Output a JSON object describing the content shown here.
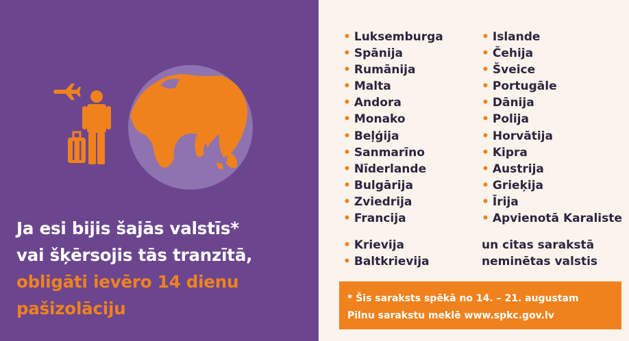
{
  "headline": {
    "line1": "Ja esi bijis šajās valstīs*",
    "line2": "vai šķērsojis tās tranzītā,",
    "line3": "obligāti ievēro 14 dienu",
    "line4": "pašizolāciju"
  },
  "countries_column_a": [
    "Luksemburga",
    "Spānija",
    "Rumānija",
    "Malta",
    "Andora",
    "Monako",
    "Beļģija",
    "Sanmarīno",
    "Nīderlande",
    "Bulgārija",
    "Zviedrija",
    "Francija"
  ],
  "countries_column_b": [
    "Islande",
    "Čehija",
    "Šveice",
    "Portugāle",
    "Dānija",
    "Polija",
    "Horvātija",
    "Kipra",
    "Austrija",
    "Grieķija",
    "Īrija",
    "Apvienotā Karaliste"
  ],
  "additional_countries": [
    "Krievija",
    "Baltkrievija"
  ],
  "additional_note": {
    "line1": "un citas sarakstā",
    "line2": "neminētas valstis"
  },
  "notice": {
    "line1": "* Šis saraksts spēkā no 14. – 21. augustam",
    "line2": "Pilnu sarakstu meklē www.spkc.gov.lv"
  },
  "bullet": "•",
  "icons": [
    "airplane-icon",
    "traveler-icon",
    "suitcase-icon",
    "globe-icon"
  ],
  "colors": {
    "purple": "#6b468f",
    "orange": "#f0821e",
    "cream": "#fbf4ec",
    "text_dark": "#2c2540",
    "globe_fill": "#8f72b0"
  }
}
